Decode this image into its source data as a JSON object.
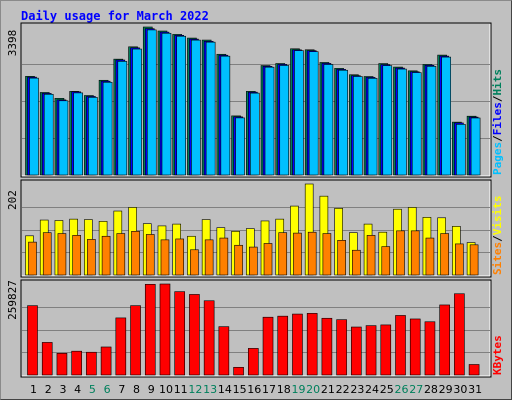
{
  "chart_data": {
    "type": "bar",
    "title": "Daily usage for March 2022",
    "x": [
      "1",
      "2",
      "3",
      "4",
      "5",
      "6",
      "7",
      "8",
      "9",
      "10",
      "11",
      "12",
      "13",
      "14",
      "15",
      "16",
      "17",
      "18",
      "19",
      "20",
      "21",
      "22",
      "23",
      "24",
      "25",
      "26",
      "27",
      "28",
      "29",
      "30",
      "31"
    ],
    "weekend_days": [
      "5",
      "6",
      "12",
      "13",
      "19",
      "20",
      "26",
      "27"
    ],
    "colors": {
      "hits": "#00805c",
      "files": "#0000ff",
      "pages": "#00c0ff",
      "visits": "#ffff00",
      "sites": "#ff8000",
      "kbytes": "#ff0000",
      "weekday_label": "#000000",
      "weekend_label": "#00805c"
    },
    "top_panel": {
      "max_label": "3398",
      "ymax": 3398,
      "legend": [
        {
          "text": "Pages",
          "color_key": "pages"
        },
        {
          "text": "/",
          "color_key": "weekday_label"
        },
        {
          "text": "Files",
          "color_key": "files"
        },
        {
          "text": "/",
          "color_key": "weekday_label"
        },
        {
          "text": "Hits",
          "color_key": "hits"
        }
      ],
      "series": [
        {
          "name": "Hits",
          "values": [
            2265,
            1895,
            1760,
            1920,
            1825,
            2175,
            2660,
            2943,
            3398,
            3306,
            3228,
            3144,
            3098,
            2772,
            1357,
            1920,
            2513,
            2560,
            2898,
            2875,
            2584,
            2448,
            2302,
            2261,
            2559,
            2478,
            2392,
            2538,
            2753,
            1214,
            1350
          ]
        },
        {
          "name": "Files",
          "values": [
            2247,
            1874,
            1725,
            1910,
            1804,
            2154,
            2640,
            2920,
            3360,
            3280,
            3207,
            3120,
            3070,
            2750,
            1335,
            1902,
            2495,
            2540,
            2874,
            2855,
            2563,
            2425,
            2280,
            2241,
            2535,
            2455,
            2370,
            2519,
            2730,
            1195,
            1329
          ]
        },
        {
          "name": "Pages",
          "values": [
            2224,
            1853,
            1704,
            1885,
            1782,
            2129,
            2609,
            2892,
            3331,
            3254,
            3186,
            3097,
            3050,
            2728,
            1311,
            1880,
            2475,
            2515,
            2855,
            2831,
            2537,
            2405,
            2261,
            2219,
            2511,
            2432,
            2351,
            2495,
            2707,
            1162,
            1309
          ]
        }
      ]
    },
    "middle_panel": {
      "max_label": "202",
      "ymax": 202,
      "legend": [
        {
          "text": "Sites",
          "color_key": "sites"
        },
        {
          "text": "/",
          "color_key": "weekday_label"
        },
        {
          "text": "Visits",
          "color_key": "visits"
        }
      ],
      "series": [
        {
          "name": "Visits",
          "values": [
            87,
            122,
            121,
            124,
            123,
            119,
            142,
            150,
            114,
            109,
            113,
            86,
            123,
            105,
            97,
            103,
            120,
            124,
            153,
            202,
            175,
            148,
            94,
            113,
            95,
            146,
            150,
            128,
            127,
            108,
            72
          ]
        },
        {
          "name": "Sites",
          "values": [
            73,
            94,
            92,
            88,
            79,
            86,
            92,
            97,
            90,
            78,
            80,
            56,
            78,
            82,
            66,
            62,
            70,
            94,
            93,
            95,
            92,
            77,
            55,
            88,
            63,
            98,
            98,
            82,
            92,
            69,
            67
          ]
        }
      ]
    },
    "bottom_panel": {
      "max_label": "259827",
      "ymax": 259827,
      "legend": [
        {
          "text": "KBytes",
          "color_key": "kbytes"
        }
      ],
      "series": [
        {
          "name": "KBytes",
          "values": [
            198000,
            93000,
            62000,
            68000,
            65000,
            80000,
            163000,
            198000,
            259000,
            259827,
            238000,
            230000,
            212000,
            138000,
            22000,
            76000,
            165000,
            168000,
            174000,
            176000,
            162000,
            158000,
            137000,
            141000,
            143000,
            170000,
            160000,
            152000,
            200000,
            232000,
            30000
          ]
        }
      ]
    }
  }
}
